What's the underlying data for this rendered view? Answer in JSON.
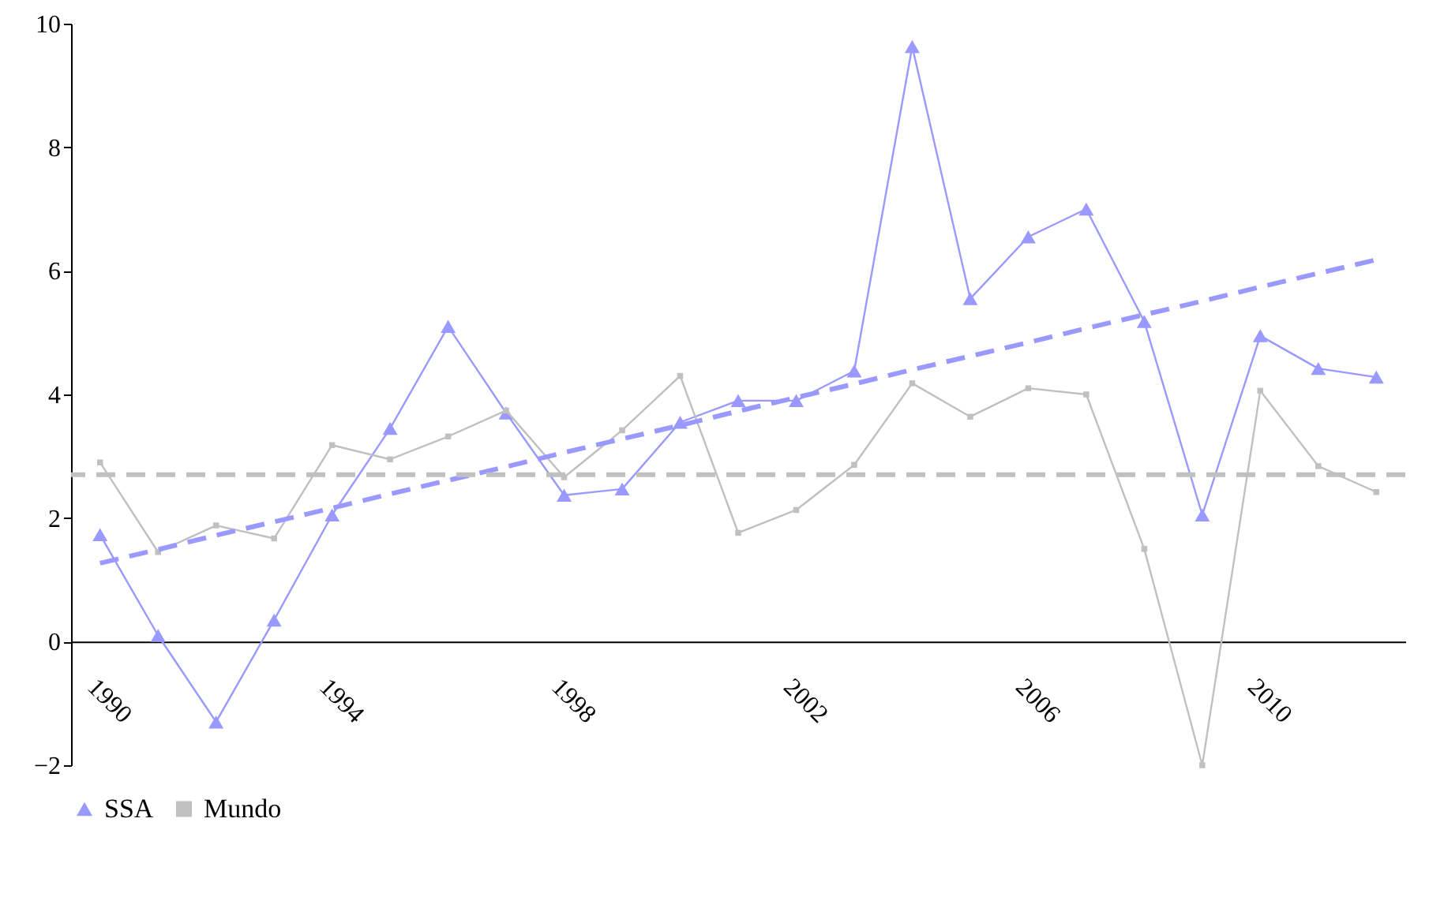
{
  "chart_data": {
    "type": "line",
    "categories": [
      "1990",
      null,
      null,
      null,
      "1994",
      null,
      null,
      null,
      "1998",
      null,
      null,
      null,
      "2002",
      null,
      null,
      null,
      "2006",
      null,
      null,
      null,
      "2010",
      null,
      null
    ],
    "series": [
      {
        "name": "SSA",
        "color": "#9999ff",
        "marker": "triangle",
        "values": [
          1.73,
          0.1,
          -1.3,
          0.35,
          2.05,
          3.45,
          5.1,
          3.7,
          2.37,
          2.47,
          3.55,
          3.9,
          3.9,
          4.38,
          9.63,
          5.55,
          6.55,
          7.0,
          5.18,
          2.05,
          4.95,
          4.42,
          4.28
        ]
      },
      {
        "name": "Mundo",
        "color": "#c0c0c0",
        "marker": "square",
        "values": [
          2.9,
          1.45,
          1.88,
          1.67,
          3.18,
          2.95,
          3.32,
          3.74,
          2.66,
          3.42,
          4.3,
          1.76,
          2.13,
          2.86,
          4.18,
          3.64,
          4.1,
          4.0,
          1.5,
          -2.0,
          4.06,
          2.84,
          2.42
        ]
      },
      {
        "type": "line",
        "color": "#9999ff",
        "line_style": "dashed",
        "marker": "none",
        "values": [
          1.27,
          1.49,
          1.72,
          1.94,
          2.16,
          2.39,
          2.61,
          2.83,
          3.06,
          3.28,
          3.5,
          3.73,
          3.95,
          4.17,
          4.4,
          4.62,
          4.84,
          5.07,
          5.29,
          5.51,
          5.74,
          5.96,
          6.18
        ]
      }
    ],
    "ref_lines": [
      {
        "axis": "y",
        "value": 2.7,
        "color": "#c0c0c0",
        "line_style": "dashed"
      }
    ],
    "ylim": [
      -2,
      10
    ],
    "yticks": [
      -2,
      0,
      2,
      4,
      6,
      8,
      10
    ],
    "grid": false,
    "legend": "bottom"
  }
}
